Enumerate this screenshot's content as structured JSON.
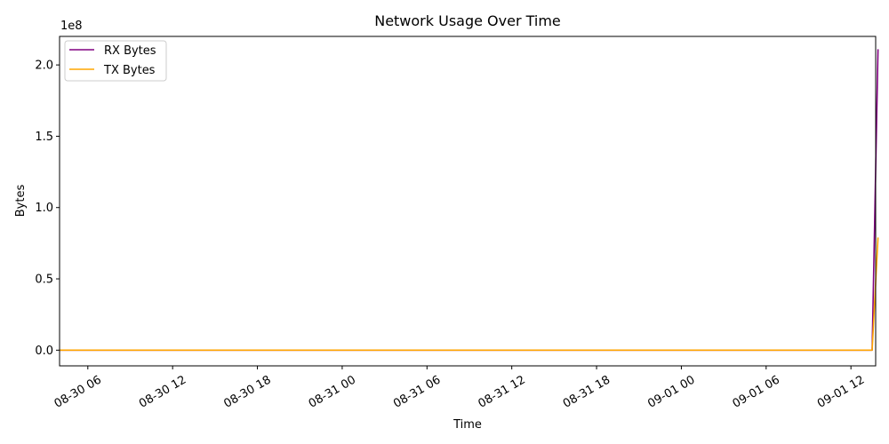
{
  "chart_data": {
    "type": "line",
    "title": "Network Usage Over Time",
    "xlabel": "Time",
    "ylabel": "Bytes",
    "y_offset_label": "1e8",
    "y_multiplier": 100000000,
    "x_ticks": [
      "08-30 06",
      "08-30 12",
      "08-30 18",
      "08-31 00",
      "08-31 06",
      "08-31 12",
      "08-31 18",
      "09-01 00",
      "09-01 06",
      "09-01 12"
    ],
    "y_ticks": [
      "0.0",
      "0.5",
      "1.0",
      "1.5",
      "2.0"
    ],
    "x_range": [
      "2023-08-30 04:00",
      "2023-09-01 13:45"
    ],
    "y_range": [
      -11000000,
      220000000
    ],
    "grid": false,
    "legend_position": "upper-left",
    "series": [
      {
        "name": "RX Bytes",
        "color": "#800080",
        "points": [
          [
            "2023-08-30 04:00",
            0
          ],
          [
            "2023-09-01 13:30",
            0
          ],
          [
            "2023-09-01 13:55",
            211000000
          ]
        ]
      },
      {
        "name": "TX Bytes",
        "color": "#ffa500",
        "points": [
          [
            "2023-08-30 04:00",
            0
          ],
          [
            "2023-09-01 13:30",
            0
          ],
          [
            "2023-09-01 13:55",
            79000000
          ]
        ]
      }
    ]
  }
}
